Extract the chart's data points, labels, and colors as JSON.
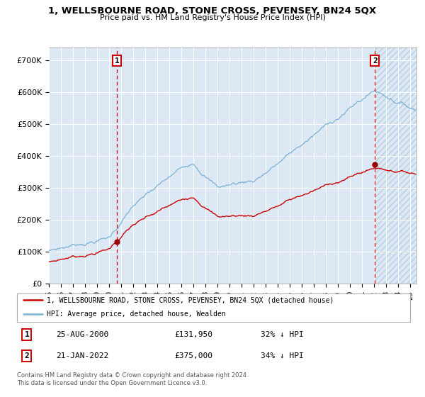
{
  "title": "1, WELLSBOURNE ROAD, STONE CROSS, PEVENSEY, BN24 5QX",
  "subtitle": "Price paid vs. HM Land Registry's House Price Index (HPI)",
  "bg_color": "#dce9f5",
  "hpi_color": "#7ab0d4",
  "price_color": "#cc0000",
  "marker_color": "#990000",
  "vline_color": "#cc0000",
  "yticks": [
    0,
    100000,
    200000,
    300000,
    400000,
    500000,
    600000,
    700000
  ],
  "ytick_labels": [
    "£0",
    "£100K",
    "£200K",
    "£300K",
    "£400K",
    "£500K",
    "£600K",
    "£700K"
  ],
  "xstart": 1995.0,
  "xend": 2025.5,
  "ymax": 740000,
  "legend1_label": "1, WELLSBOURNE ROAD, STONE CROSS, PEVENSEY, BN24 5QX (detached house)",
  "legend2_label": "HPI: Average price, detached house, Wealden",
  "transaction1_date": "25-AUG-2000",
  "transaction1_price": 131950,
  "transaction1_year": 2000.65,
  "transaction2_date": "21-JAN-2022",
  "transaction2_price": 375000,
  "transaction2_year": 2022.05,
  "footnote": "Contains HM Land Registry data © Crown copyright and database right 2024.\nThis data is licensed under the Open Government Licence v3.0.",
  "table_row1": [
    "1",
    "25-AUG-2000",
    "£131,950",
    "32% ↓ HPI"
  ],
  "table_row2": [
    "2",
    "21-JAN-2022",
    "£375,000",
    "34% ↓ HPI"
  ]
}
